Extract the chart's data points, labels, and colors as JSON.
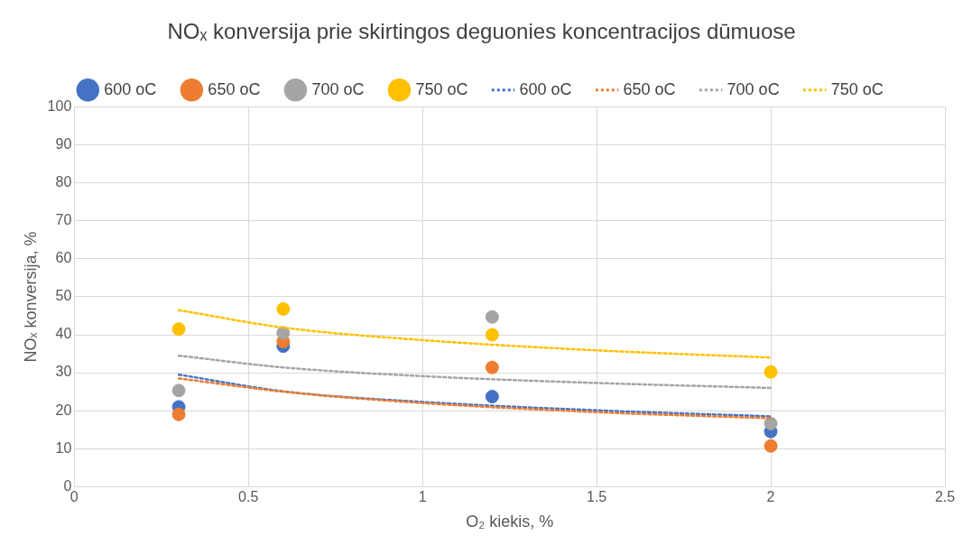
{
  "chart_data": {
    "type": "scatter",
    "title": "NOₓ konversija prie skirtingos deguonies koncentracijos dūmuose",
    "xlabel": "O₂ kiekis, %",
    "ylabel": "NOₓ konversija, %",
    "xlim": [
      0,
      2.5
    ],
    "xticks": [
      0,
      0.5,
      1,
      1.5,
      2,
      2.5
    ],
    "ylim": [
      0,
      100
    ],
    "yticks": [
      0,
      10,
      20,
      30,
      40,
      50,
      60,
      70,
      80,
      90,
      100
    ],
    "grid": true,
    "legend": "top",
    "marker": "circle",
    "series": [
      {
        "name": "600 oC",
        "color": "#4472c4",
        "x": [
          0.3,
          0.6,
          1.2,
          2
        ],
        "values": [
          21,
          37,
          23.7,
          14.5
        ]
      },
      {
        "name": "650 oC",
        "color": "#ed7d31",
        "x": [
          0.3,
          0.6,
          1.2,
          2
        ],
        "values": [
          19,
          38.2,
          31.4,
          10.7
        ]
      },
      {
        "name": "700 oC",
        "color": "#a5a5a5",
        "x": [
          0.3,
          0.6,
          1.2,
          2
        ],
        "values": [
          25.3,
          40.5,
          44.7,
          16.6
        ]
      },
      {
        "name": "750 oC",
        "color": "#ffc000",
        "x": [
          0.3,
          0.6,
          1.2,
          2
        ],
        "values": [
          41.5,
          46.8,
          40,
          30.2
        ]
      },
      {
        "name": "600 oC",
        "color": "#4472c4",
        "type": "line",
        "line_style": "dotted",
        "marker": "none",
        "x": [
          0.3,
          0.6,
          1,
          1.5,
          2
        ],
        "values": [
          29.5,
          25.1,
          22.3,
          20.1,
          18.5
        ]
      },
      {
        "name": "650 oC",
        "color": "#ed7d31",
        "type": "line",
        "line_style": "dotted",
        "marker": "none",
        "x": [
          0.3,
          0.6,
          1,
          1.5,
          2
        ],
        "values": [
          28.5,
          25,
          22,
          19.6,
          18
        ]
      },
      {
        "name": "700 oC",
        "color": "#a5a5a5",
        "type": "line",
        "line_style": "dotted",
        "marker": "none",
        "x": [
          0.3,
          0.6,
          1,
          1.5,
          2
        ],
        "values": [
          34.5,
          31.4,
          29.1,
          27.3,
          26
        ]
      },
      {
        "name": "750 oC",
        "color": "#ffc000",
        "type": "line",
        "line_style": "dotted",
        "marker": "none",
        "x": [
          0.3,
          0.6,
          1,
          1.5,
          2
        ],
        "values": [
          46.5,
          41.9,
          38.6,
          35.9,
          34
        ]
      }
    ]
  }
}
